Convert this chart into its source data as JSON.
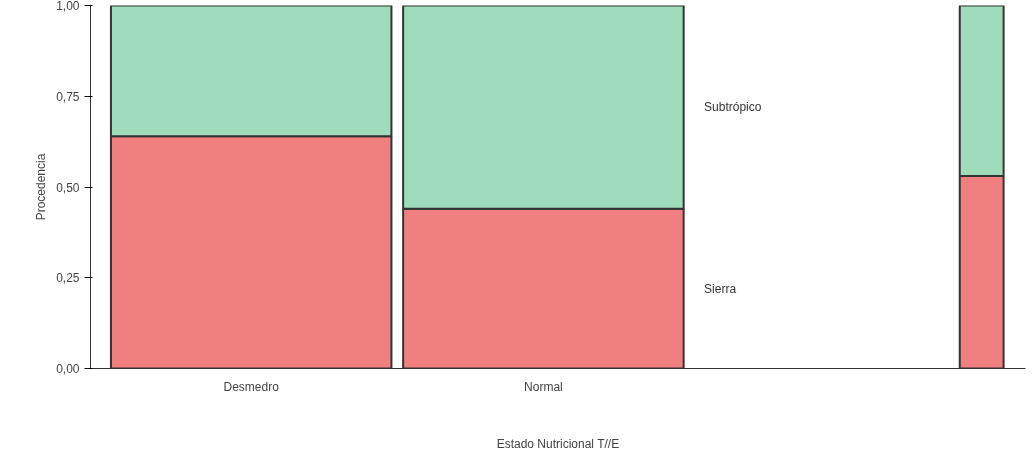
{
  "chart_data": {
    "type": "bar",
    "stacked": true,
    "xlabel": "Estado Nutricional T//E",
    "ylabel": "Procedencia",
    "categories": [
      "Desmedro",
      "Normal",
      null
    ],
    "series": [
      {
        "name": "Sierra",
        "color": "#f08080",
        "values": [
          0.64,
          0.44,
          0.53
        ]
      },
      {
        "name": "Subtrópico",
        "color": "#9fdcbc",
        "values": [
          0.36,
          0.56,
          0.47
        ]
      }
    ],
    "ylim": [
      0,
      1
    ],
    "yticks": [
      {
        "value": 0,
        "label": "0,00"
      },
      {
        "value": 0.25,
        "label": "0,25"
      },
      {
        "value": 0.5,
        "label": "0,50"
      },
      {
        "value": 0.75,
        "label": "0,75"
      },
      {
        "value": 1,
        "label": "1,00"
      }
    ],
    "grid": false,
    "legend": "right"
  }
}
